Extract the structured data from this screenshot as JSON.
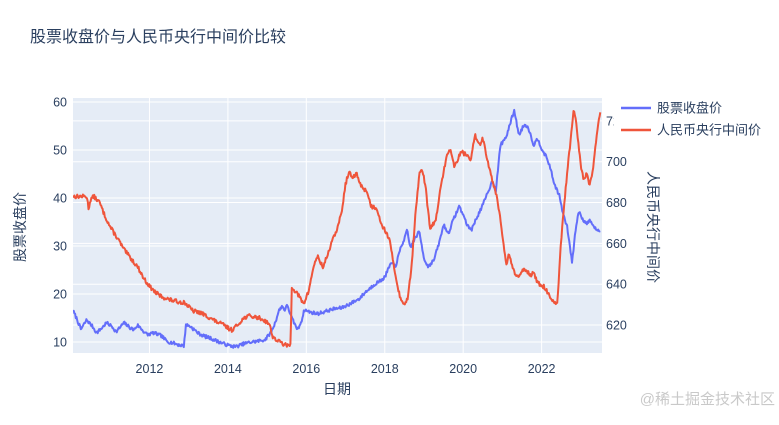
{
  "title": "股票收盘价与人民币央行中间价比较",
  "watermark": "@稀土掘金技术社区",
  "chart_data": {
    "type": "line",
    "title": "股票收盘价与人民币央行中间价比较",
    "xlabel": "日期",
    "ylabel_left": "股票收盘价",
    "ylabel_right": "人民币央行中间价",
    "plot_bg": "#e5ecf6",
    "grid_color": "#ffffff",
    "text_color": "#2a3f5f",
    "legend_position": "top-right-outside",
    "grid": true,
    "x_range": [
      2010.05,
      2023.54
    ],
    "x_ticks": [
      2012,
      2014,
      2016,
      2018,
      2020,
      2022
    ],
    "y_left_range": [
      7.7,
      60.83
    ],
    "y_left_ticks": [
      60,
      50,
      40,
      30,
      20,
      10
    ],
    "y_right_range": [
      606.3,
      731.2
    ],
    "y_right_ticks": [
      720,
      700,
      680,
      660,
      640,
      620
    ],
    "series": [
      {
        "name": "股票收盘价",
        "color": "#636efa",
        "axis": "left",
        "jitter": 0.35,
        "seed": 7,
        "points": [
          [
            2010.05,
            16.5
          ],
          [
            2010.15,
            14.8
          ],
          [
            2010.25,
            12.6
          ],
          [
            2010.4,
            14.6
          ],
          [
            2010.55,
            13.2
          ],
          [
            2010.65,
            11.9
          ],
          [
            2010.8,
            13.0
          ],
          [
            2010.9,
            14.0
          ],
          [
            2011.05,
            13.2
          ],
          [
            2011.15,
            12.1
          ],
          [
            2011.35,
            14.0
          ],
          [
            2011.5,
            13.0
          ],
          [
            2011.6,
            12.5
          ],
          [
            2011.7,
            13.5
          ],
          [
            2011.85,
            12.2
          ],
          [
            2011.95,
            11.5
          ],
          [
            2012.1,
            11.9
          ],
          [
            2012.3,
            11.3
          ],
          [
            2012.45,
            10.1
          ],
          [
            2012.6,
            9.8
          ],
          [
            2012.75,
            9.4
          ],
          [
            2012.88,
            9.2
          ],
          [
            2012.93,
            13.6
          ],
          [
            2013.05,
            13.2
          ],
          [
            2013.25,
            11.8
          ],
          [
            2013.4,
            11.2
          ],
          [
            2013.55,
            10.8
          ],
          [
            2013.75,
            10.1
          ],
          [
            2013.9,
            9.6
          ],
          [
            2014.05,
            9.2
          ],
          [
            2014.2,
            9.0
          ],
          [
            2014.4,
            9.6
          ],
          [
            2014.55,
            9.9
          ],
          [
            2014.7,
            10.1
          ],
          [
            2014.85,
            10.3
          ],
          [
            2014.95,
            10.5
          ],
          [
            2015.1,
            12.0
          ],
          [
            2015.2,
            13.9
          ],
          [
            2015.3,
            16.5
          ],
          [
            2015.38,
            17.5
          ],
          [
            2015.45,
            16.7
          ],
          [
            2015.52,
            17.7
          ],
          [
            2015.6,
            15.5
          ],
          [
            2015.7,
            13.8
          ],
          [
            2015.78,
            12.5
          ],
          [
            2015.88,
            14.5
          ],
          [
            2015.95,
            16.7
          ],
          [
            2016.1,
            16.2
          ],
          [
            2016.3,
            15.9
          ],
          [
            2016.5,
            16.4
          ],
          [
            2016.7,
            16.9
          ],
          [
            2016.9,
            17.1
          ],
          [
            2017.1,
            17.9
          ],
          [
            2017.35,
            19.0
          ],
          [
            2017.5,
            20.3
          ],
          [
            2017.75,
            22.1
          ],
          [
            2017.9,
            22.8
          ],
          [
            2018.0,
            23.5
          ],
          [
            2018.15,
            26.3
          ],
          [
            2018.28,
            25.9
          ],
          [
            2018.4,
            29.4
          ],
          [
            2018.5,
            31.5
          ],
          [
            2018.57,
            33.2
          ],
          [
            2018.65,
            29.7
          ],
          [
            2018.8,
            32.0
          ],
          [
            2018.88,
            33.0
          ],
          [
            2019.0,
            27.5
          ],
          [
            2019.1,
            25.7
          ],
          [
            2019.25,
            27.0
          ],
          [
            2019.4,
            31.0
          ],
          [
            2019.5,
            34.5
          ],
          [
            2019.62,
            32.5
          ],
          [
            2019.75,
            35.5
          ],
          [
            2019.9,
            38.3
          ],
          [
            2020.0,
            36.5
          ],
          [
            2020.12,
            34.0
          ],
          [
            2020.22,
            33.5
          ],
          [
            2020.35,
            36.0
          ],
          [
            2020.5,
            38.5
          ],
          [
            2020.62,
            41.0
          ],
          [
            2020.75,
            43.7
          ],
          [
            2020.83,
            41.3
          ],
          [
            2020.95,
            51.0
          ],
          [
            2021.1,
            52.8
          ],
          [
            2021.2,
            55.5
          ],
          [
            2021.3,
            58.3
          ],
          [
            2021.42,
            53.1
          ],
          [
            2021.55,
            55.2
          ],
          [
            2021.65,
            54.9
          ],
          [
            2021.8,
            51.0
          ],
          [
            2021.9,
            52.4
          ],
          [
            2022.0,
            50.3
          ],
          [
            2022.12,
            48.5
          ],
          [
            2022.2,
            46.9
          ],
          [
            2022.32,
            43.0
          ],
          [
            2022.45,
            40.6
          ],
          [
            2022.55,
            36.5
          ],
          [
            2022.65,
            34.0
          ],
          [
            2022.72,
            30.0
          ],
          [
            2022.78,
            26.5
          ],
          [
            2022.85,
            32.5
          ],
          [
            2022.95,
            37.4
          ],
          [
            2023.05,
            35.5
          ],
          [
            2023.15,
            34.8
          ],
          [
            2023.25,
            35.3
          ],
          [
            2023.35,
            33.7
          ],
          [
            2023.5,
            33.0
          ]
        ]
      },
      {
        "name": "人民币央行中间价",
        "color": "#ef553b",
        "axis": "right",
        "jitter": 1.0,
        "seed": 13,
        "points": [
          [
            2010.05,
            683
          ],
          [
            2010.4,
            683
          ],
          [
            2010.45,
            677
          ],
          [
            2010.5,
            681.5
          ],
          [
            2010.58,
            683
          ],
          [
            2010.73,
            680
          ],
          [
            2010.85,
            674
          ],
          [
            2011.0,
            668
          ],
          [
            2011.2,
            662
          ],
          [
            2011.35,
            657
          ],
          [
            2011.55,
            652
          ],
          [
            2011.7,
            648.5
          ],
          [
            2011.85,
            643
          ],
          [
            2012.0,
            639
          ],
          [
            2012.15,
            636
          ],
          [
            2012.3,
            634
          ],
          [
            2012.5,
            632.5
          ],
          [
            2012.7,
            631.5
          ],
          [
            2012.9,
            631
          ],
          [
            2013.1,
            627
          ],
          [
            2013.3,
            626
          ],
          [
            2013.5,
            624
          ],
          [
            2013.7,
            621.7
          ],
          [
            2013.9,
            620
          ],
          [
            2014.0,
            618.5
          ],
          [
            2014.1,
            617.6
          ],
          [
            2014.25,
            620
          ],
          [
            2014.35,
            622.5
          ],
          [
            2014.5,
            624.5
          ],
          [
            2014.65,
            624
          ],
          [
            2014.8,
            623.5
          ],
          [
            2014.95,
            622
          ],
          [
            2015.05,
            620.9
          ],
          [
            2015.15,
            614
          ],
          [
            2015.25,
            612.5
          ],
          [
            2015.35,
            611.5
          ],
          [
            2015.45,
            610.3
          ],
          [
            2015.55,
            609.6
          ],
          [
            2015.6,
            611
          ],
          [
            2015.63,
            639
          ],
          [
            2015.7,
            637
          ],
          [
            2015.8,
            634.5
          ],
          [
            2015.93,
            630.2
          ],
          [
            2016.05,
            636
          ],
          [
            2016.2,
            650
          ],
          [
            2016.3,
            653.6
          ],
          [
            2016.42,
            648
          ],
          [
            2016.55,
            655
          ],
          [
            2016.68,
            662
          ],
          [
            2016.8,
            668
          ],
          [
            2016.9,
            675
          ],
          [
            2017.0,
            689
          ],
          [
            2017.08,
            695
          ],
          [
            2017.18,
            692
          ],
          [
            2017.28,
            694
          ],
          [
            2017.4,
            688
          ],
          [
            2017.55,
            685.4
          ],
          [
            2017.65,
            678.1
          ],
          [
            2017.8,
            677.3
          ],
          [
            2017.92,
            669.1
          ],
          [
            2018.05,
            665
          ],
          [
            2018.12,
            661.8
          ],
          [
            2018.25,
            647.1
          ],
          [
            2018.32,
            639.7
          ],
          [
            2018.42,
            631.5
          ],
          [
            2018.5,
            630.2
          ],
          [
            2018.58,
            633
          ],
          [
            2018.68,
            648
          ],
          [
            2018.78,
            673
          ],
          [
            2018.88,
            694.6
          ],
          [
            2018.97,
            695.5
          ],
          [
            2019.05,
            686
          ],
          [
            2019.15,
            667.5
          ],
          [
            2019.3,
            671
          ],
          [
            2019.45,
            690
          ],
          [
            2019.55,
            700
          ],
          [
            2019.65,
            707
          ],
          [
            2019.78,
            697.5
          ],
          [
            2019.95,
            705
          ],
          [
            2020.1,
            703
          ],
          [
            2020.2,
            701
          ],
          [
            2020.3,
            713
          ],
          [
            2020.42,
            708.3
          ],
          [
            2020.5,
            711.6
          ],
          [
            2020.65,
            698.5
          ],
          [
            2020.75,
            690.4
          ],
          [
            2020.85,
            683.8
          ],
          [
            2020.95,
            672.4
          ],
          [
            2021.05,
            656
          ],
          [
            2021.1,
            648.7
          ],
          [
            2021.17,
            655.2
          ],
          [
            2021.27,
            647.1
          ],
          [
            2021.4,
            643
          ],
          [
            2021.55,
            648
          ],
          [
            2021.65,
            646
          ],
          [
            2021.72,
            644.6
          ],
          [
            2021.8,
            645.4
          ],
          [
            2021.9,
            640.5
          ],
          [
            2022.05,
            638.9
          ],
          [
            2022.12,
            637.3
          ],
          [
            2022.2,
            634
          ],
          [
            2022.3,
            631
          ],
          [
            2022.4,
            629.9
          ],
          [
            2022.5,
            662
          ],
          [
            2022.58,
            680
          ],
          [
            2022.68,
            700
          ],
          [
            2022.75,
            712
          ],
          [
            2022.82,
            725.5
          ],
          [
            2022.88,
            719
          ],
          [
            2022.93,
            710
          ],
          [
            2023.0,
            698
          ],
          [
            2023.08,
            691
          ],
          [
            2023.15,
            694
          ],
          [
            2023.22,
            688.5
          ],
          [
            2023.3,
            695
          ],
          [
            2023.38,
            708
          ],
          [
            2023.45,
            720
          ],
          [
            2023.5,
            723.5
          ]
        ]
      }
    ]
  }
}
